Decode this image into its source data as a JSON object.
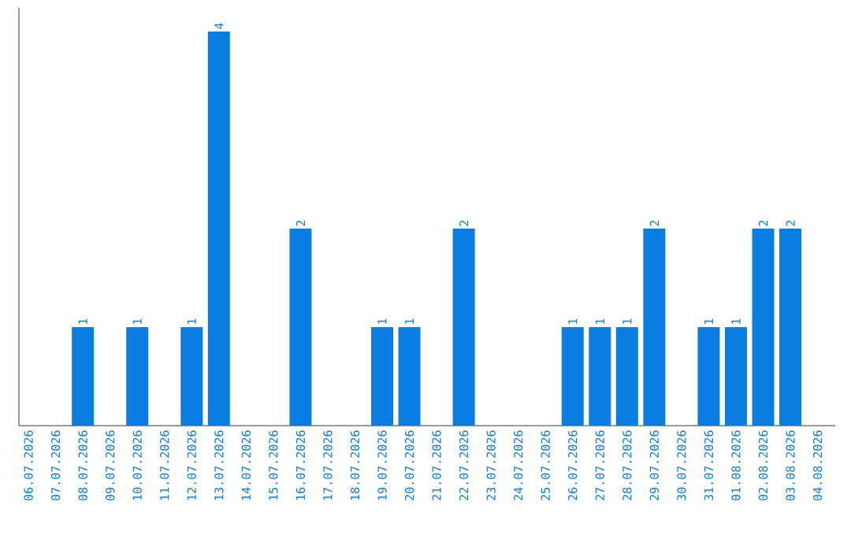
{
  "chart_data": {
    "type": "bar",
    "categories": [
      "06.07.2026",
      "07.07.2026",
      "08.07.2026",
      "09.07.2026",
      "10.07.2026",
      "11.07.2026",
      "12.07.2026",
      "13.07.2026",
      "14.07.2026",
      "15.07.2026",
      "16.07.2026",
      "17.07.2026",
      "18.07.2026",
      "19.07.2026",
      "20.07.2026",
      "21.07.2026",
      "22.07.2026",
      "23.07.2026",
      "24.07.2026",
      "25.07.2026",
      "26.07.2026",
      "27.07.2026",
      "28.07.2026",
      "29.07.2026",
      "30.07.2026",
      "31.07.2026",
      "01.08.2026",
      "02.08.2026",
      "03.08.2026",
      "04.08.2026"
    ],
    "values": [
      0,
      0,
      1,
      0,
      1,
      0,
      1,
      4,
      0,
      0,
      2,
      0,
      0,
      1,
      1,
      0,
      2,
      0,
      0,
      0,
      1,
      1,
      1,
      2,
      0,
      1,
      1,
      2,
      2,
      0
    ],
    "value_labels": [
      null,
      null,
      "1",
      null,
      "1",
      null,
      "1",
      "4",
      null,
      null,
      "2",
      null,
      null,
      "1",
      "1",
      null,
      "2",
      null,
      null,
      null,
      "1",
      "1",
      "1",
      "2",
      null,
      "1",
      "1",
      "2",
      "2",
      null
    ],
    "color": "#0a7de3"
  }
}
